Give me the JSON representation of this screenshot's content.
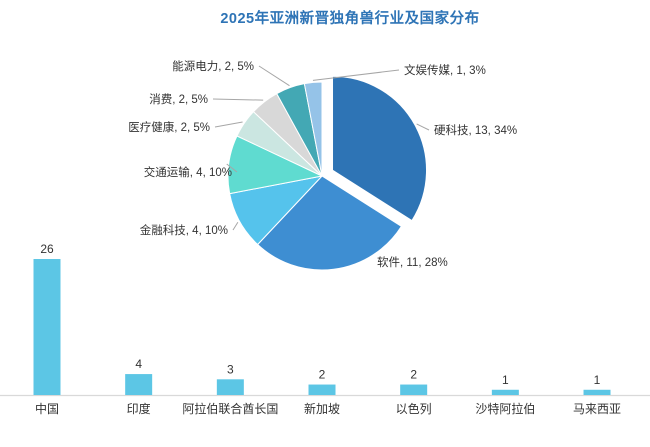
{
  "title": "2025年亚洲新晋独角兽行业及国家分布",
  "colors": {
    "title_text": "#2E74B6",
    "label_text": "#333333",
    "leader_line": "#A6A6A6",
    "axis_line": "#D9D9D9",
    "bar_fill": "#5CC6E5"
  },
  "chart_data": [
    {
      "type": "pie",
      "name": "industry-distribution",
      "categories": [
        "硬科技",
        "软件",
        "金融科技",
        "交通运输",
        "医疗健康",
        "消费",
        "能源电力",
        "文娱传媒"
      ],
      "values": [
        13,
        11,
        4,
        4,
        2,
        2,
        2,
        1
      ],
      "percentages": [
        34,
        28,
        10,
        10,
        5,
        5,
        5,
        3
      ],
      "colors": [
        "#2E74B5",
        "#3E8ED2",
        "#55C3EC",
        "#5FDBD0",
        "#CBE6E1",
        "#D8D8D8",
        "#43A8B4",
        "#95C3E8"
      ],
      "exploded_slice": "硬科技",
      "label_style": "leader-line data labels: name, value, percent",
      "legend": "none"
    },
    {
      "type": "bar",
      "name": "country-distribution",
      "categories": [
        "中国",
        "印度",
        "阿拉伯联合酋长国",
        "新加坡",
        "以色列",
        "沙特阿拉伯",
        "马来西亚"
      ],
      "values": [
        26,
        4,
        3,
        2,
        2,
        1,
        1
      ],
      "ylim": [
        0,
        26
      ],
      "grid": false,
      "value_labels": true,
      "xlabel": "",
      "ylabel": ""
    }
  ]
}
